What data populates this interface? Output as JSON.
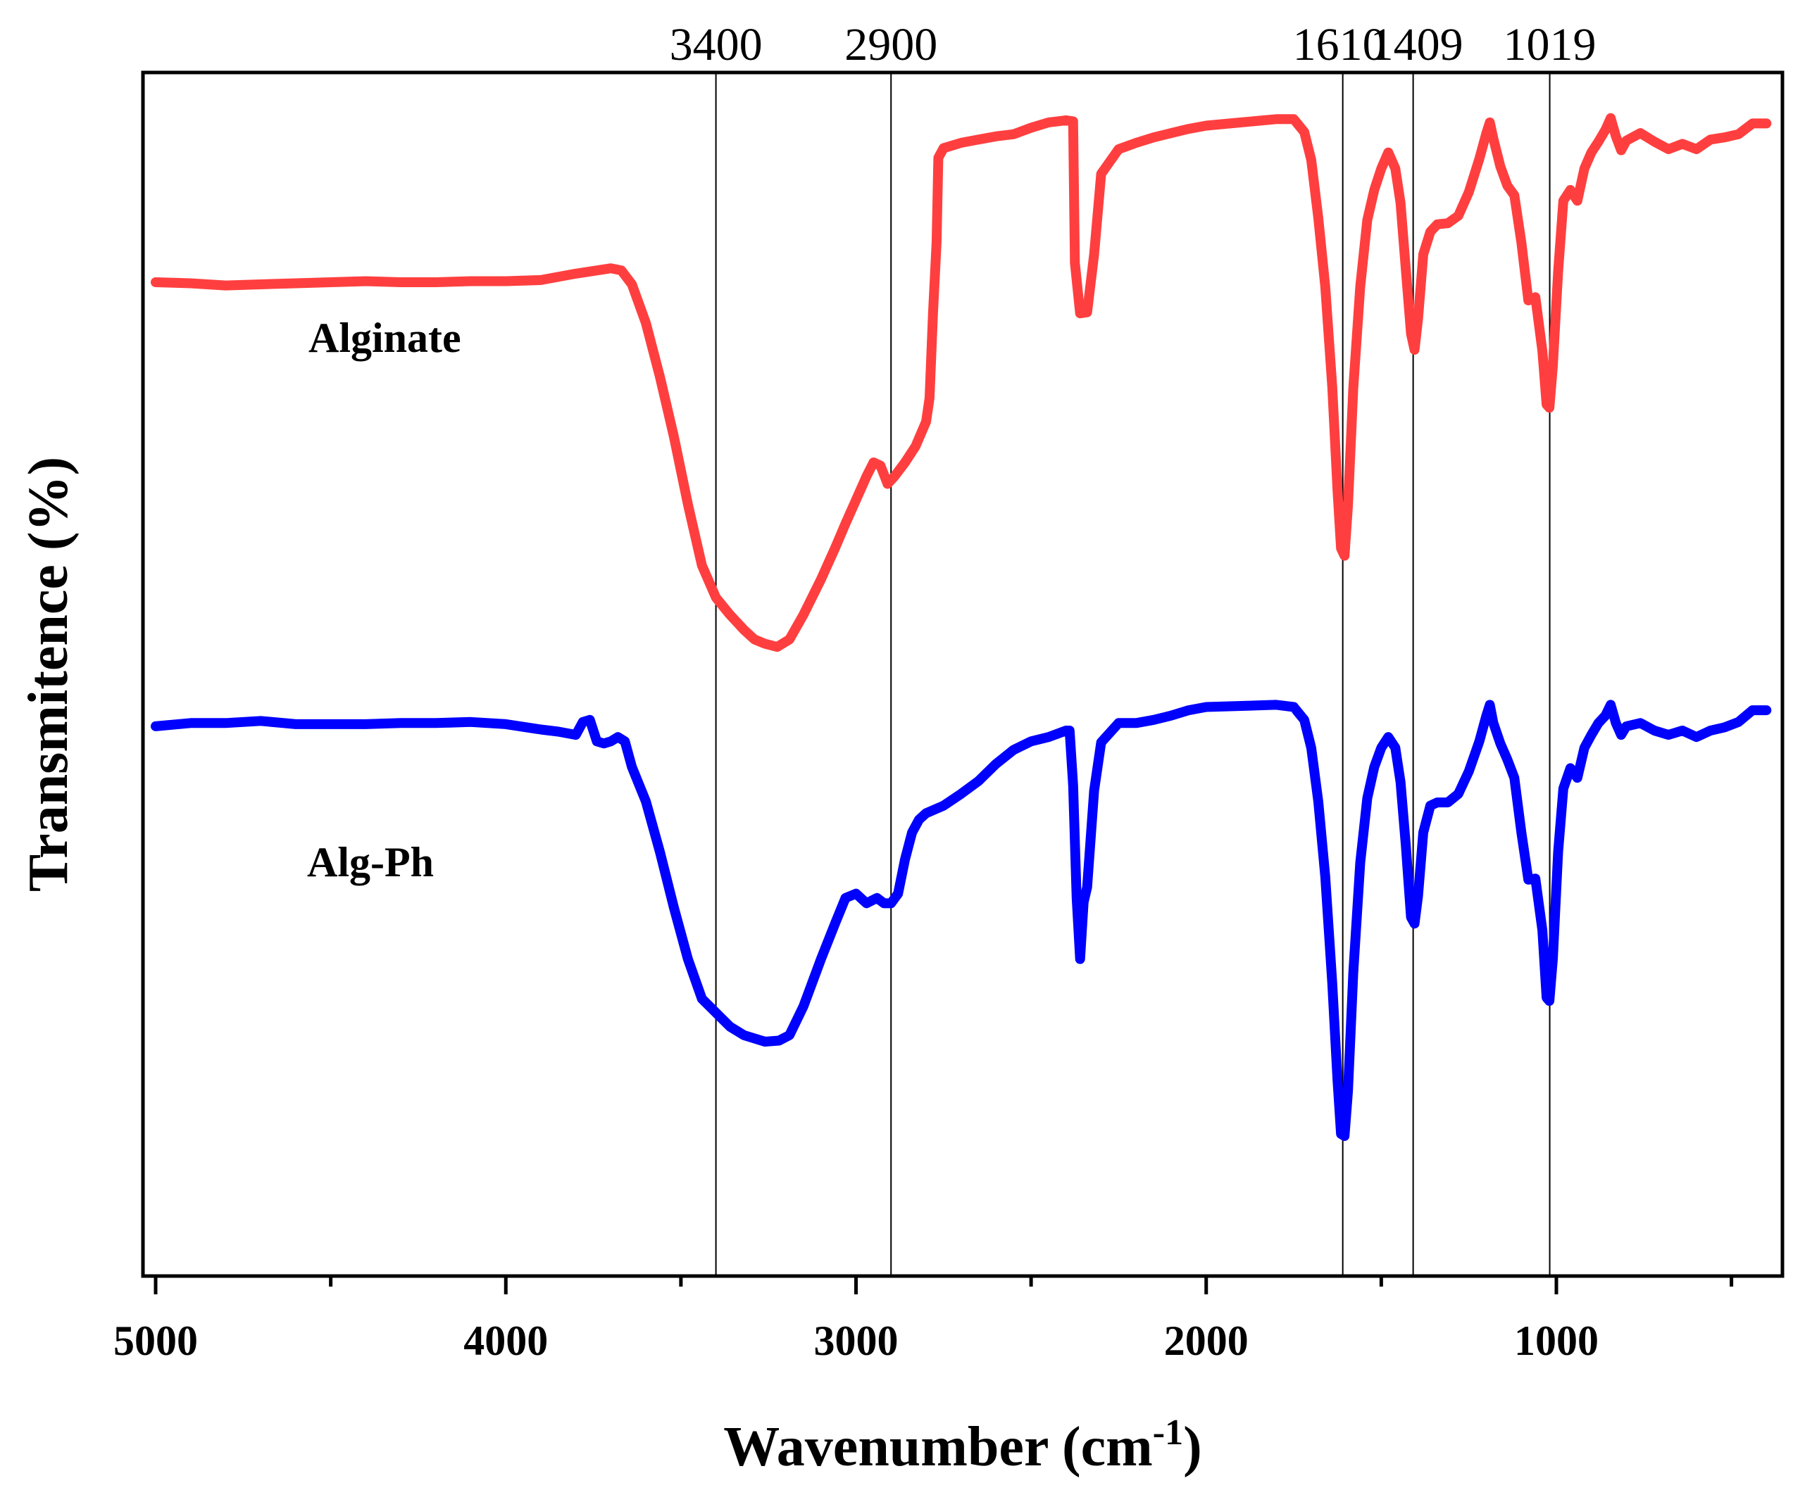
{
  "chart_data": {
    "type": "line",
    "title": "",
    "xlabel": "Wavenumber (cm",
    "xlabel_sup": "-1",
    "xlabel_close": ")",
    "ylabel": "Transmitence (%)",
    "xlim": [
      5000,
      400
    ],
    "ylim": [
      0,
      100
    ],
    "x_reversed": true,
    "x_ticks": [
      5000,
      4000,
      3000,
      2000,
      1000
    ],
    "x_tick_labels": [
      "5000",
      "4000",
      "3000",
      "2000",
      "1000"
    ],
    "x_minor_ticks": [
      4500,
      3500,
      2500,
      1500,
      500
    ],
    "y_tick_labels": false,
    "grid": false,
    "reference_lines": [
      {
        "x": 3400,
        "label": "3400"
      },
      {
        "x": 2900,
        "label": "2900"
      },
      {
        "x": 1610,
        "label": "1610"
      },
      {
        "x": 1409,
        "label": "1409"
      },
      {
        "x": 1019,
        "label": "1019"
      }
    ],
    "series": [
      {
        "name": "Alginate",
        "color": "#ff3f3f",
        "points": [
          [
            5000,
            83.4
          ],
          [
            4900,
            83.3
          ],
          [
            4800,
            83.1
          ],
          [
            4700,
            83.2
          ],
          [
            4600,
            83.3
          ],
          [
            4500,
            83.4
          ],
          [
            4400,
            83.5
          ],
          [
            4300,
            83.4
          ],
          [
            4200,
            83.4
          ],
          [
            4100,
            83.5
          ],
          [
            4000,
            83.5
          ],
          [
            3900,
            83.6
          ],
          [
            3800,
            84.2
          ],
          [
            3700,
            84.7
          ],
          [
            3670,
            84.5
          ],
          [
            3640,
            83.2
          ],
          [
            3600,
            79.6
          ],
          [
            3560,
            74.6
          ],
          [
            3520,
            69.0
          ],
          [
            3480,
            62.7
          ],
          [
            3440,
            57.0
          ],
          [
            3400,
            54.0
          ],
          [
            3360,
            52.4
          ],
          [
            3320,
            51.0
          ],
          [
            3290,
            50.1
          ],
          [
            3260,
            49.7
          ],
          [
            3225,
            49.4
          ],
          [
            3190,
            50.1
          ],
          [
            3150,
            52.4
          ],
          [
            3100,
            55.7
          ],
          [
            3060,
            58.6
          ],
          [
            3030,
            60.9
          ],
          [
            3000,
            63.1
          ],
          [
            2970,
            65.3
          ],
          [
            2950,
            66.6
          ],
          [
            2930,
            66.3
          ],
          [
            2910,
            64.6
          ],
          [
            2890,
            65.3
          ],
          [
            2860,
            66.6
          ],
          [
            2830,
            68.1
          ],
          [
            2800,
            70.4
          ],
          [
            2790,
            72.6
          ],
          [
            2780,
            80.6
          ],
          [
            2770,
            87.1
          ],
          [
            2765,
            95.0
          ],
          [
            2750,
            95.9
          ],
          [
            2700,
            96.4
          ],
          [
            2650,
            96.7
          ],
          [
            2600,
            97.0
          ],
          [
            2550,
            97.2
          ],
          [
            2500,
            97.8
          ],
          [
            2450,
            98.3
          ],
          [
            2400,
            98.5
          ],
          [
            2380,
            98.4
          ],
          [
            2375,
            85.2
          ],
          [
            2360,
            80.5
          ],
          [
            2340,
            80.6
          ],
          [
            2320,
            86.0
          ],
          [
            2300,
            93.5
          ],
          [
            2250,
            95.8
          ],
          [
            2200,
            96.4
          ],
          [
            2150,
            96.9
          ],
          [
            2100,
            97.3
          ],
          [
            2050,
            97.7
          ],
          [
            2000,
            98.0
          ],
          [
            1900,
            98.3
          ],
          [
            1800,
            98.6
          ],
          [
            1750,
            98.6
          ],
          [
            1720,
            97.4
          ],
          [
            1700,
            94.8
          ],
          [
            1680,
            89.4
          ],
          [
            1660,
            83.0
          ],
          [
            1640,
            73.6
          ],
          [
            1625,
            64.0
          ],
          [
            1615,
            58.6
          ],
          [
            1605,
            57.9
          ],
          [
            1595,
            62.6
          ],
          [
            1580,
            73.5
          ],
          [
            1560,
            83.0
          ],
          [
            1540,
            89.2
          ],
          [
            1520,
            92.0
          ],
          [
            1500,
            94.0
          ],
          [
            1480,
            95.5
          ],
          [
            1460,
            94.0
          ],
          [
            1445,
            90.8
          ],
          [
            1430,
            84.6
          ],
          [
            1415,
            78.6
          ],
          [
            1405,
            77.1
          ],
          [
            1395,
            80.0
          ],
          [
            1380,
            86.0
          ],
          [
            1360,
            88.1
          ],
          [
            1340,
            88.8
          ],
          [
            1310,
            88.9
          ],
          [
            1280,
            89.6
          ],
          [
            1250,
            91.8
          ],
          [
            1220,
            94.9
          ],
          [
            1200,
            97.3
          ],
          [
            1190,
            98.3
          ],
          [
            1180,
            96.8
          ],
          [
            1160,
            94.2
          ],
          [
            1140,
            92.4
          ],
          [
            1120,
            91.5
          ],
          [
            1100,
            87.1
          ],
          [
            1080,
            81.7
          ],
          [
            1060,
            82.0
          ],
          [
            1040,
            77.0
          ],
          [
            1028,
            72.0
          ],
          [
            1020,
            71.7
          ],
          [
            1010,
            75.6
          ],
          [
            995,
            84.4
          ],
          [
            980,
            91.0
          ],
          [
            960,
            92.0
          ],
          [
            940,
            91.0
          ],
          [
            920,
            94.0
          ],
          [
            900,
            95.5
          ],
          [
            880,
            96.5
          ],
          [
            860,
            97.6
          ],
          [
            845,
            98.7
          ],
          [
            830,
            97.0
          ],
          [
            815,
            95.7
          ],
          [
            800,
            96.6
          ],
          [
            760,
            97.3
          ],
          [
            720,
            96.5
          ],
          [
            680,
            95.8
          ],
          [
            640,
            96.3
          ],
          [
            600,
            95.8
          ],
          [
            560,
            96.7
          ],
          [
            520,
            96.9
          ],
          [
            480,
            97.2
          ],
          [
            440,
            98.2
          ],
          [
            400,
            98.2
          ]
        ]
      },
      {
        "name": "Alg-Ph",
        "color": "#0000ff",
        "points": [
          [
            5000,
            42.0
          ],
          [
            4900,
            42.3
          ],
          [
            4800,
            42.3
          ],
          [
            4700,
            42.5
          ],
          [
            4600,
            42.2
          ],
          [
            4500,
            42.2
          ],
          [
            4400,
            42.2
          ],
          [
            4300,
            42.3
          ],
          [
            4200,
            42.3
          ],
          [
            4100,
            42.4
          ],
          [
            4000,
            42.2
          ],
          [
            3900,
            41.7
          ],
          [
            3850,
            41.5
          ],
          [
            3800,
            41.2
          ],
          [
            3780,
            42.4
          ],
          [
            3760,
            42.6
          ],
          [
            3740,
            40.6
          ],
          [
            3720,
            40.4
          ],
          [
            3700,
            40.6
          ],
          [
            3680,
            41.0
          ],
          [
            3660,
            40.6
          ],
          [
            3640,
            38.2
          ],
          [
            3600,
            35.0
          ],
          [
            3560,
            30.3
          ],
          [
            3520,
            25.1
          ],
          [
            3480,
            20.3
          ],
          [
            3440,
            16.6
          ],
          [
            3400,
            15.3
          ],
          [
            3360,
            14.0
          ],
          [
            3320,
            13.2
          ],
          [
            3290,
            12.9
          ],
          [
            3260,
            12.6
          ],
          [
            3220,
            12.7
          ],
          [
            3190,
            13.2
          ],
          [
            3150,
            15.9
          ],
          [
            3100,
            20.3
          ],
          [
            3060,
            23.6
          ],
          [
            3030,
            26.0
          ],
          [
            3000,
            26.4
          ],
          [
            2970,
            25.5
          ],
          [
            2940,
            26.0
          ],
          [
            2920,
            25.5
          ],
          [
            2900,
            25.5
          ],
          [
            2880,
            26.4
          ],
          [
            2860,
            29.6
          ],
          [
            2840,
            32.1
          ],
          [
            2820,
            33.3
          ],
          [
            2800,
            33.9
          ],
          [
            2750,
            34.6
          ],
          [
            2700,
            35.7
          ],
          [
            2650,
            36.9
          ],
          [
            2600,
            38.5
          ],
          [
            2550,
            39.8
          ],
          [
            2500,
            40.6
          ],
          [
            2450,
            41.0
          ],
          [
            2400,
            41.6
          ],
          [
            2390,
            41.6
          ],
          [
            2380,
            36.5
          ],
          [
            2370,
            26.0
          ],
          [
            2360,
            20.3
          ],
          [
            2350,
            25.6
          ],
          [
            2340,
            27.0
          ],
          [
            2320,
            36.0
          ],
          [
            2300,
            40.5
          ],
          [
            2250,
            42.3
          ],
          [
            2200,
            42.3
          ],
          [
            2150,
            42.6
          ],
          [
            2100,
            43.0
          ],
          [
            2050,
            43.5
          ],
          [
            2000,
            43.8
          ],
          [
            1900,
            43.9
          ],
          [
            1800,
            44.0
          ],
          [
            1750,
            43.8
          ],
          [
            1720,
            42.6
          ],
          [
            1700,
            40.0
          ],
          [
            1680,
            35.0
          ],
          [
            1660,
            28.0
          ],
          [
            1640,
            18.0
          ],
          [
            1625,
            9.0
          ],
          [
            1615,
            4.0
          ],
          [
            1605,
            3.8
          ],
          [
            1595,
            8.0
          ],
          [
            1580,
            19.0
          ],
          [
            1560,
            29.3
          ],
          [
            1540,
            35.3
          ],
          [
            1520,
            38.2
          ],
          [
            1500,
            40.0
          ],
          [
            1480,
            41.0
          ],
          [
            1460,
            40.0
          ],
          [
            1445,
            36.8
          ],
          [
            1430,
            30.9
          ],
          [
            1415,
            24.2
          ],
          [
            1405,
            23.6
          ],
          [
            1395,
            26.2
          ],
          [
            1380,
            32.1
          ],
          [
            1360,
            34.6
          ],
          [
            1340,
            34.9
          ],
          [
            1310,
            34.9
          ],
          [
            1280,
            35.7
          ],
          [
            1250,
            37.8
          ],
          [
            1220,
            40.6
          ],
          [
            1200,
            43.0
          ],
          [
            1190,
            44.0
          ],
          [
            1180,
            42.3
          ],
          [
            1160,
            40.4
          ],
          [
            1140,
            38.9
          ],
          [
            1120,
            37.2
          ],
          [
            1100,
            32.1
          ],
          [
            1080,
            27.7
          ],
          [
            1060,
            27.8
          ],
          [
            1040,
            23.0
          ],
          [
            1028,
            16.7
          ],
          [
            1020,
            16.4
          ],
          [
            1010,
            20.3
          ],
          [
            995,
            30.3
          ],
          [
            980,
            36.2
          ],
          [
            960,
            38.1
          ],
          [
            940,
            37.2
          ],
          [
            920,
            40.0
          ],
          [
            900,
            41.2
          ],
          [
            880,
            42.3
          ],
          [
            860,
            43.0
          ],
          [
            845,
            44.0
          ],
          [
            830,
            42.3
          ],
          [
            815,
            41.2
          ],
          [
            800,
            42.0
          ],
          [
            760,
            42.3
          ],
          [
            720,
            41.6
          ],
          [
            680,
            41.2
          ],
          [
            640,
            41.6
          ],
          [
            600,
            41.0
          ],
          [
            560,
            41.6
          ],
          [
            520,
            41.9
          ],
          [
            480,
            42.4
          ],
          [
            440,
            43.5
          ],
          [
            400,
            43.5
          ]
        ]
      }
    ]
  }
}
